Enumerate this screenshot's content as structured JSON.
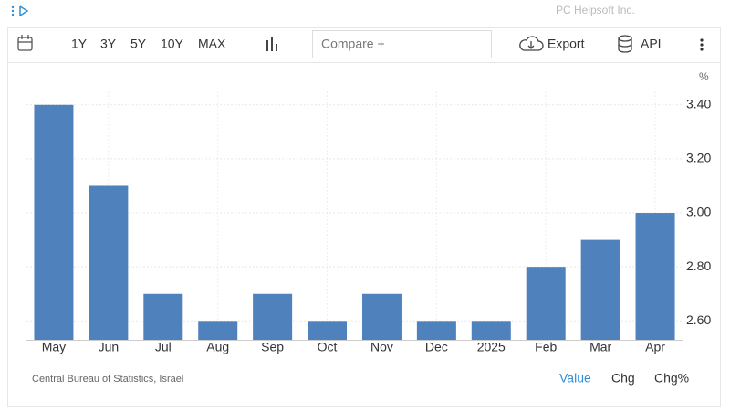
{
  "header": {
    "brand": "PC Helpsoft Inc."
  },
  "toolbar": {
    "ranges": [
      "1Y",
      "3Y",
      "5Y",
      "10Y",
      "MAX"
    ],
    "compare": "Compare +",
    "export": "Export",
    "api": "API"
  },
  "chart_data": {
    "type": "bar",
    "unit": "%",
    "categories": [
      "May",
      "Jun",
      "Jul",
      "Aug",
      "Sep",
      "Oct",
      "Nov",
      "Dec",
      "2025",
      "Feb",
      "Mar",
      "Apr"
    ],
    "values": [
      3.4,
      3.1,
      2.7,
      2.6,
      2.7,
      2.6,
      2.7,
      2.6,
      2.6,
      2.8,
      2.9,
      3.0
    ],
    "color": "#4f81bd",
    "ylim": [
      2.53,
      3.45
    ],
    "yticks": [
      {
        "value": 2.6,
        "label": "2.60"
      },
      {
        "value": 2.8,
        "label": "2.80"
      },
      {
        "value": 3.0,
        "label": "3.00"
      },
      {
        "value": 3.2,
        "label": "3.20"
      },
      {
        "value": 3.4,
        "label": "3.40"
      }
    ],
    "grid": true,
    "source": "Central Bureau of Statistics, Israel"
  },
  "footer": {
    "modes": [
      "Value",
      "Chg",
      "Chg%"
    ]
  }
}
